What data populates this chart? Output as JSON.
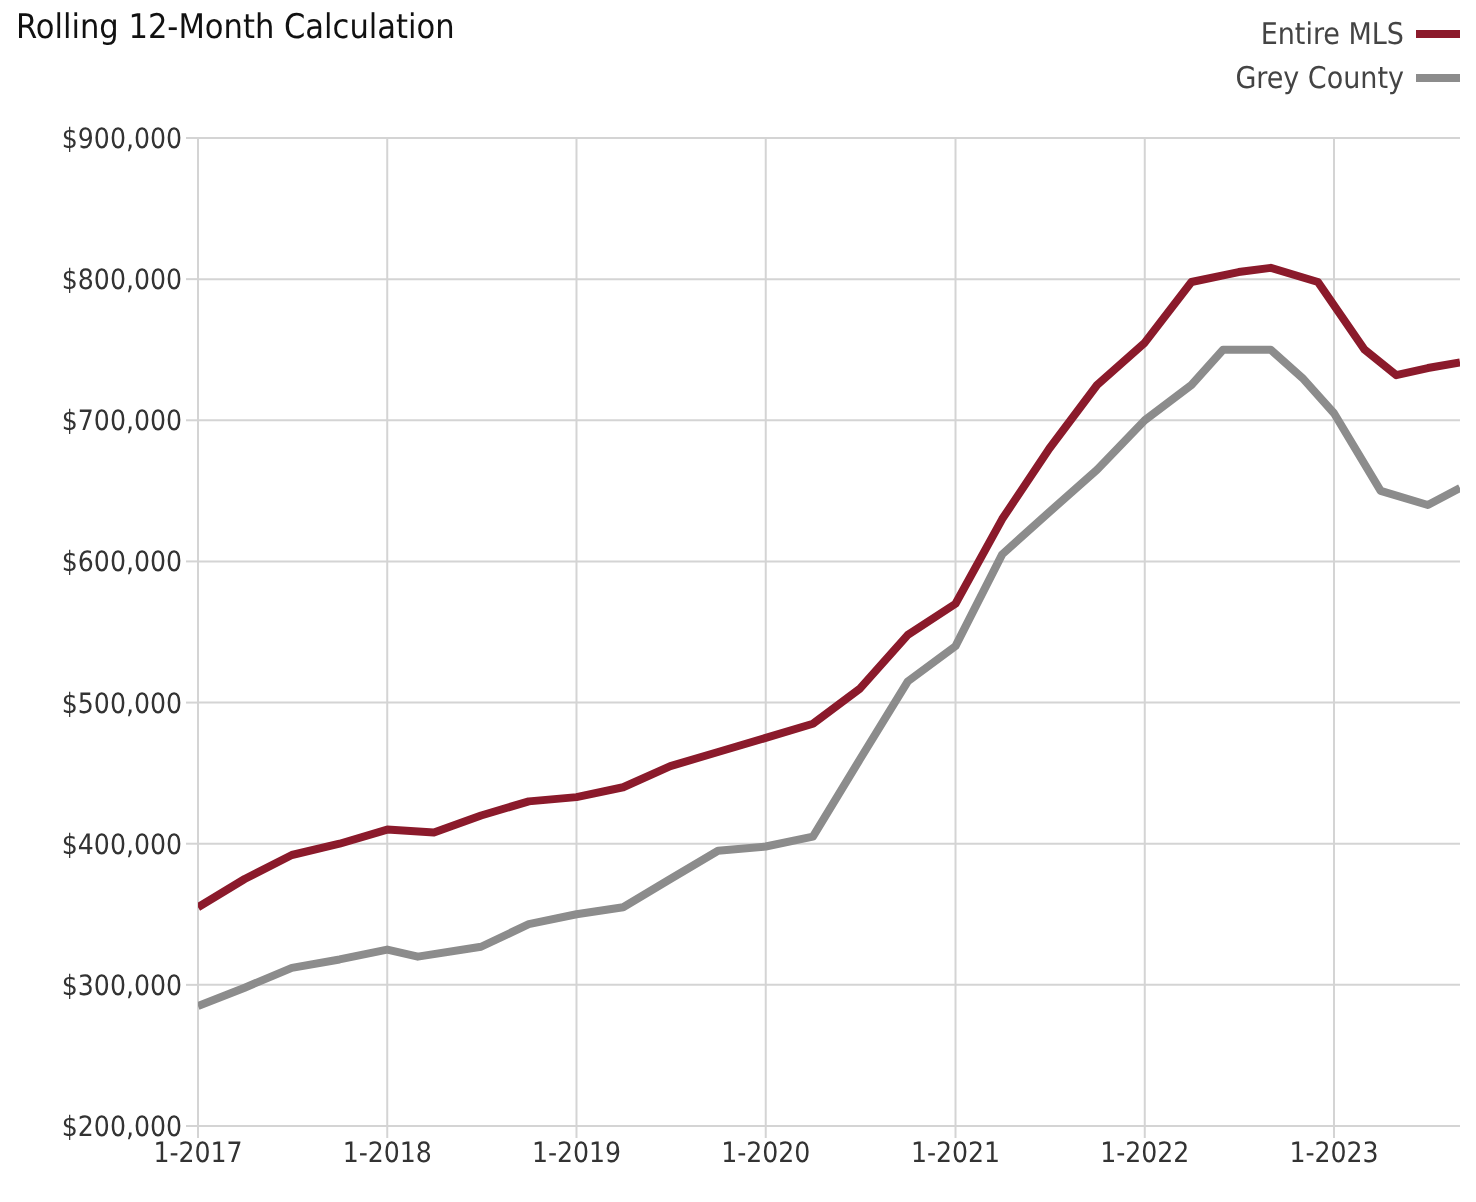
{
  "chart_data": {
    "type": "line",
    "title": "Rolling 12-Month Calculation",
    "legend": "top right",
    "grid": true,
    "marker": "none",
    "line_style": "solid",
    "xlim": [
      "2017-01",
      "2023-09"
    ],
    "xticks": [
      {
        "value": "2017-01",
        "label": "1-2017"
      },
      {
        "value": "2018-01",
        "label": "1-2018"
      },
      {
        "value": "2019-01",
        "label": "1-2019"
      },
      {
        "value": "2020-01",
        "label": "1-2020"
      },
      {
        "value": "2021-01",
        "label": "1-2021"
      },
      {
        "value": "2022-01",
        "label": "1-2022"
      },
      {
        "value": "2023-01",
        "label": "1-2023"
      }
    ],
    "ylim": [
      200000,
      900000
    ],
    "yticks": [
      {
        "value": 200000,
        "label": "$200,000"
      },
      {
        "value": 300000,
        "label": "$300,000"
      },
      {
        "value": 400000,
        "label": "$400,000"
      },
      {
        "value": 500000,
        "label": "$500,000"
      },
      {
        "value": 600000,
        "label": "$600,000"
      },
      {
        "value": 700000,
        "label": "$700,000"
      },
      {
        "value": 800000,
        "label": "$800,000"
      },
      {
        "value": 900000,
        "label": "$900,000"
      }
    ],
    "series": [
      {
        "name": "Entire MLS",
        "color": "#8b1a2b",
        "x": [
          "2017-01",
          "2017-04",
          "2017-07",
          "2017-10",
          "2018-01",
          "2018-04",
          "2018-07",
          "2018-10",
          "2019-01",
          "2019-04",
          "2019-07",
          "2019-10",
          "2020-01",
          "2020-04",
          "2020-07",
          "2020-10",
          "2021-01",
          "2021-04",
          "2021-07",
          "2021-10",
          "2022-01",
          "2022-04",
          "2022-07",
          "2022-09",
          "2022-12",
          "2023-03",
          "2023-05",
          "2023-07",
          "2023-09"
        ],
        "values": [
          355000,
          375000,
          392000,
          400000,
          410000,
          408000,
          420000,
          430000,
          433000,
          440000,
          455000,
          465000,
          475000,
          485000,
          510000,
          548000,
          570000,
          630000,
          680000,
          725000,
          755000,
          798000,
          805000,
          808000,
          798000,
          750000,
          732000,
          737000,
          741000
        ]
      },
      {
        "name": "Grey County",
        "color": "#8c8c8c",
        "x": [
          "2017-01",
          "2017-04",
          "2017-07",
          "2017-10",
          "2018-01",
          "2018-03",
          "2018-07",
          "2018-10",
          "2019-01",
          "2019-04",
          "2019-07",
          "2019-10",
          "2020-01",
          "2020-04",
          "2020-07",
          "2020-10",
          "2021-01",
          "2021-04",
          "2021-07",
          "2021-10",
          "2022-01",
          "2022-04",
          "2022-06",
          "2022-09",
          "2022-11",
          "2023-01",
          "2023-04",
          "2023-07",
          "2023-09"
        ],
        "values": [
          285000,
          298000,
          312000,
          318000,
          325000,
          320000,
          327000,
          343000,
          350000,
          355000,
          375000,
          395000,
          398000,
          405000,
          460000,
          515000,
          540000,
          605000,
          635000,
          665000,
          700000,
          725000,
          750000,
          750000,
          730000,
          705000,
          650000,
          640000,
          652000
        ]
      }
    ]
  }
}
